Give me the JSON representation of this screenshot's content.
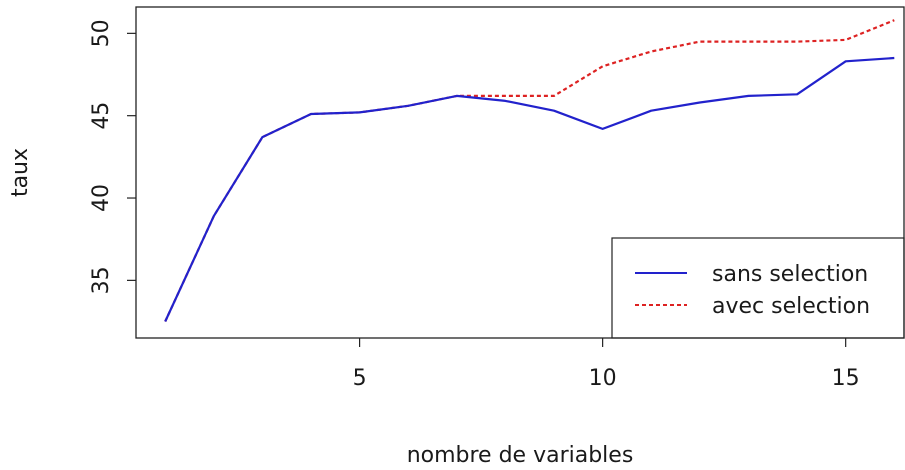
{
  "chart_data": {
    "type": "line",
    "title": "",
    "xlabel": "nombre de variables",
    "ylabel": "taux",
    "xlim": [
      0.4,
      16.2
    ],
    "ylim": [
      31.5,
      51.6
    ],
    "x_ticks": [
      5,
      10,
      15
    ],
    "y_ticks": [
      35,
      40,
      45,
      50
    ],
    "grid": false,
    "legend_position": "bottom-right",
    "x": [
      1,
      2,
      3,
      4,
      5,
      6,
      7,
      8,
      9,
      10,
      11,
      12,
      13,
      14,
      15,
      16
    ],
    "series": [
      {
        "name": "sans selection",
        "color": "#2222cc",
        "line_style": "solid",
        "values": [
          32.5,
          38.9,
          43.7,
          45.1,
          45.2,
          45.6,
          46.2,
          45.9,
          45.3,
          44.2,
          45.3,
          45.8,
          46.2,
          46.3,
          48.3,
          48.5
        ]
      },
      {
        "name": "avec selection",
        "color": "#dd2222",
        "line_style": "dotted",
        "values": [
          32.5,
          38.9,
          43.7,
          45.1,
          45.2,
          45.6,
          46.2,
          46.2,
          46.2,
          48.0,
          48.9,
          49.5,
          49.5,
          49.5,
          49.6,
          50.8
        ]
      }
    ]
  }
}
